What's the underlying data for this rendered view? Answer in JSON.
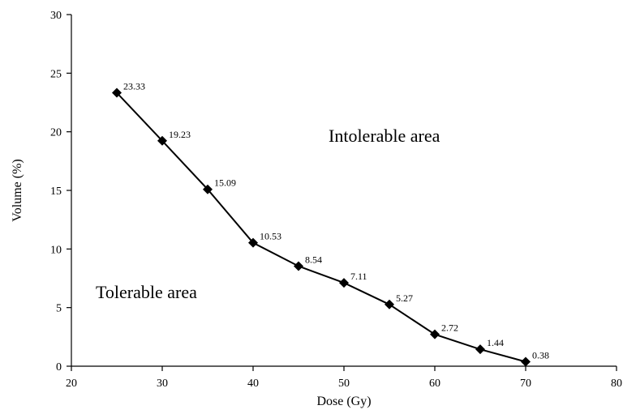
{
  "chart_data": {
    "type": "line",
    "x": [
      25,
      30,
      35,
      40,
      45,
      50,
      55,
      60,
      65,
      70
    ],
    "series": [
      {
        "values": [
          23.33,
          19.23,
          15.09,
          10.53,
          8.54,
          7.11,
          5.27,
          2.72,
          1.44,
          0.38
        ]
      }
    ],
    "data_labels": [
      "23.33",
      "19.23",
      "15.09",
      "10.53",
      "8.54",
      "7.11",
      "5.27",
      "2.72",
      "1.44",
      "0.38"
    ],
    "xlabel": "Dose (Gy)",
    "ylabel": "Volume (%)",
    "xlim": [
      20,
      80
    ],
    "ylim": [
      0,
      30
    ],
    "x_ticks": [
      "20",
      "30",
      "40",
      "50",
      "60",
      "70",
      "80"
    ],
    "y_ticks": [
      "0",
      "5",
      "10",
      "15",
      "20",
      "25",
      "30"
    ],
    "annotations": {
      "upper": "Intolerable area",
      "lower": "Tolerable area"
    },
    "grid": false,
    "legend": "none",
    "marker": "diamond",
    "colors": {
      "series": "#000000",
      "axis": "#000000"
    }
  }
}
